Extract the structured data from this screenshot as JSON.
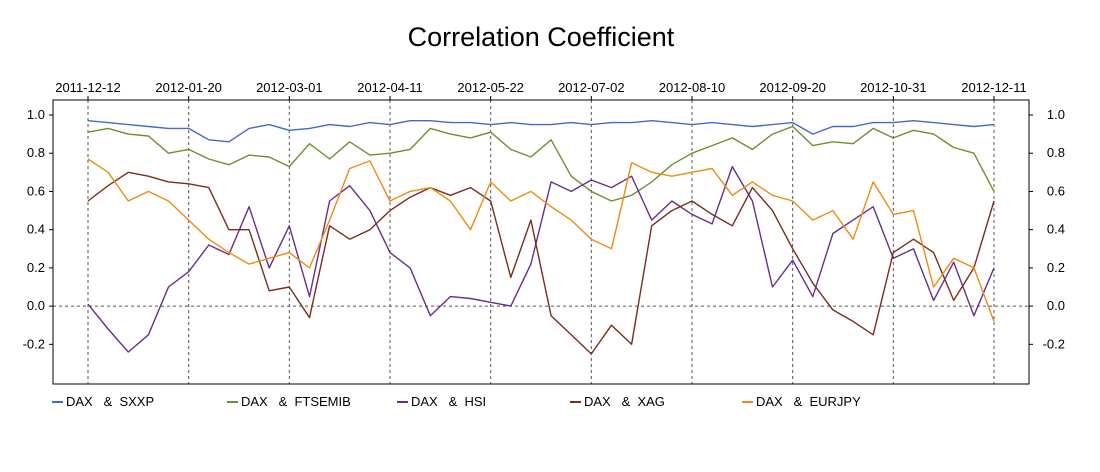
{
  "chart_data": {
    "type": "line",
    "title": "Correlation Coefficient",
    "xlabel": "",
    "ylabel": "",
    "x_tick_labels": [
      "2011-12-12",
      "2012-01-20",
      "2012-03-01",
      "2012-04-11",
      "2012-05-22",
      "2012-07-02",
      "2012-08-10",
      "2012-09-20",
      "2012-10-31",
      "2012-12-11"
    ],
    "y_ticks": [
      1.0,
      0.8,
      0.6,
      0.4,
      0.2,
      0.0,
      -0.2
    ],
    "y_tick_labels": [
      "1.0",
      "0.8",
      "0.6",
      "0.4",
      "0.2",
      "0.0",
      "-0.2"
    ],
    "ylim": [
      -0.35,
      1.0
    ],
    "x_index_range": [
      0,
      90
    ],
    "reference_line_y": 0.0,
    "grid": "vertical dashed at date ticks",
    "legend_position": "bottom",
    "series": [
      {
        "name": "DAX   &  SXXP",
        "color": "#4169C8",
        "x": [
          0,
          2,
          4,
          6,
          8,
          10,
          12,
          14,
          16,
          18,
          20,
          22,
          24,
          26,
          28,
          30,
          32,
          34,
          36,
          38,
          40,
          42,
          44,
          46,
          48,
          50,
          52,
          54,
          56,
          58,
          60,
          62,
          64,
          66,
          68,
          70,
          72,
          74,
          76,
          78,
          80,
          82,
          84,
          86,
          88,
          90
        ],
        "values": [
          0.97,
          0.96,
          0.95,
          0.94,
          0.93,
          0.93,
          0.87,
          0.86,
          0.93,
          0.95,
          0.92,
          0.93,
          0.95,
          0.94,
          0.96,
          0.95,
          0.97,
          0.97,
          0.96,
          0.96,
          0.95,
          0.96,
          0.95,
          0.95,
          0.96,
          0.95,
          0.96,
          0.96,
          0.97,
          0.96,
          0.95,
          0.96,
          0.95,
          0.94,
          0.95,
          0.96,
          0.9,
          0.94,
          0.94,
          0.96,
          0.96,
          0.97,
          0.96,
          0.95,
          0.94,
          0.95
        ]
      },
      {
        "name": "DAX   &  FTSEMIB",
        "color": "#6E8F2E",
        "x": [
          0,
          2,
          4,
          6,
          8,
          10,
          12,
          14,
          16,
          18,
          20,
          22,
          24,
          26,
          28,
          30,
          32,
          34,
          36,
          38,
          40,
          42,
          44,
          46,
          48,
          50,
          52,
          54,
          56,
          58,
          60,
          62,
          64,
          66,
          68,
          70,
          72,
          74,
          76,
          78,
          80,
          82,
          84,
          86,
          88,
          90
        ],
        "values": [
          0.91,
          0.93,
          0.9,
          0.89,
          0.8,
          0.82,
          0.77,
          0.74,
          0.79,
          0.78,
          0.73,
          0.85,
          0.77,
          0.86,
          0.79,
          0.8,
          0.82,
          0.93,
          0.9,
          0.88,
          0.91,
          0.82,
          0.78,
          0.87,
          0.68,
          0.6,
          0.55,
          0.58,
          0.65,
          0.74,
          0.8,
          0.84,
          0.88,
          0.82,
          0.9,
          0.94,
          0.84,
          0.86,
          0.85,
          0.93,
          0.88,
          0.92,
          0.9,
          0.83,
          0.8,
          0.6
        ]
      },
      {
        "name": "DAX   &  HSI",
        "color": "#6A2D8C",
        "x": [
          0,
          2,
          4,
          6,
          8,
          10,
          12,
          14,
          16,
          18,
          20,
          22,
          24,
          26,
          28,
          30,
          32,
          34,
          36,
          38,
          40,
          42,
          44,
          46,
          48,
          50,
          52,
          54,
          56,
          58,
          60,
          62,
          64,
          66,
          68,
          70,
          72,
          74,
          76,
          78,
          80,
          82,
          84,
          86,
          88,
          90
        ],
        "values": [
          0.01,
          -0.12,
          -0.24,
          -0.15,
          0.1,
          0.18,
          0.32,
          0.27,
          0.52,
          0.2,
          0.42,
          0.05,
          0.55,
          0.63,
          0.5,
          0.28,
          0.2,
          -0.05,
          0.05,
          0.04,
          0.02,
          0.0,
          0.22,
          0.65,
          0.6,
          0.66,
          0.62,
          0.68,
          0.45,
          0.55,
          0.48,
          0.43,
          0.73,
          0.55,
          0.1,
          0.24,
          0.05,
          0.38,
          0.45,
          0.52,
          0.25,
          0.3,
          0.03,
          0.23,
          -0.05,
          0.2
        ]
      },
      {
        "name": "DAX   &  XAG",
        "color": "#7B2D1A",
        "x": [
          0,
          2,
          4,
          6,
          8,
          10,
          12,
          14,
          16,
          18,
          20,
          22,
          24,
          26,
          28,
          30,
          32,
          34,
          36,
          38,
          40,
          42,
          44,
          46,
          48,
          50,
          52,
          54,
          56,
          58,
          60,
          62,
          64,
          66,
          68,
          70,
          72,
          74,
          76,
          78,
          80,
          82,
          84,
          86,
          88,
          90
        ],
        "values": [
          0.55,
          0.63,
          0.7,
          0.68,
          0.65,
          0.64,
          0.62,
          0.4,
          0.4,
          0.08,
          0.1,
          -0.06,
          0.42,
          0.35,
          0.4,
          0.5,
          0.57,
          0.62,
          0.58,
          0.62,
          0.55,
          0.15,
          0.45,
          -0.05,
          -0.15,
          -0.25,
          -0.1,
          -0.2,
          0.42,
          0.5,
          0.55,
          0.48,
          0.42,
          0.62,
          0.5,
          0.3,
          0.12,
          -0.02,
          -0.08,
          -0.15,
          0.28,
          0.35,
          0.28,
          0.03,
          0.2,
          0.55
        ]
      },
      {
        "name": "DAX   &  EURJPY",
        "color": "#F28A10",
        "x": [
          0,
          2,
          4,
          6,
          8,
          10,
          12,
          14,
          16,
          18,
          20,
          22,
          24,
          26,
          28,
          30,
          32,
          34,
          36,
          38,
          40,
          42,
          44,
          46,
          48,
          50,
          52,
          54,
          56,
          58,
          60,
          62,
          64,
          66,
          68,
          70,
          72,
          74,
          76,
          78,
          80,
          82,
          84,
          86,
          88,
          90
        ],
        "values": [
          0.77,
          0.7,
          0.55,
          0.6,
          0.55,
          0.45,
          0.35,
          0.28,
          0.22,
          0.25,
          0.28,
          0.2,
          0.45,
          0.72,
          0.76,
          0.55,
          0.6,
          0.62,
          0.55,
          0.4,
          0.65,
          0.55,
          0.6,
          0.52,
          0.45,
          0.35,
          0.3,
          0.75,
          0.7,
          0.68,
          0.7,
          0.72,
          0.58,
          0.65,
          0.58,
          0.55,
          0.45,
          0.5,
          0.35,
          0.65,
          0.48,
          0.5,
          0.1,
          0.25,
          0.2,
          -0.08
        ]
      }
    ]
  }
}
